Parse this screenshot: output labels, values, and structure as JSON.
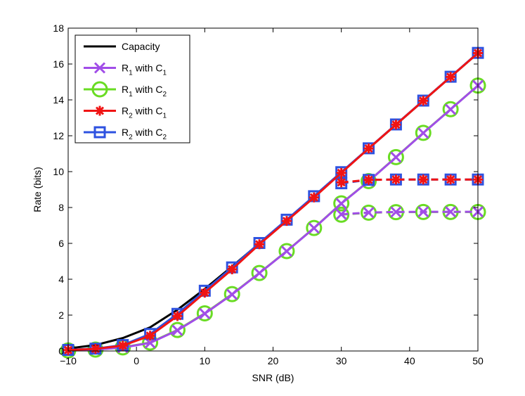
{
  "chart_data": {
    "type": "line",
    "title": "",
    "xlabel": "SNR (dB)",
    "ylabel": "Rate (bits)",
    "xlim": [
      -10,
      50
    ],
    "ylim": [
      0,
      18
    ],
    "xticks": [
      -10,
      0,
      10,
      20,
      30,
      40,
      50
    ],
    "yticks": [
      0,
      2,
      4,
      6,
      8,
      10,
      12,
      14,
      16,
      18
    ],
    "xtick_labels": [
      "−10",
      "0",
      "10",
      "20",
      "30",
      "40",
      "50"
    ],
    "ytick_labels": [
      "0",
      "2",
      "4",
      "6",
      "8",
      "10",
      "12",
      "14",
      "16",
      "18"
    ],
    "grid": false,
    "legend_position": "top-left",
    "series": [
      {
        "key": "capacity",
        "name": "Capacity",
        "legend_main": "Capacity",
        "color": "#000000",
        "marker": "none",
        "x": [
          -10,
          -6,
          -2,
          2,
          6,
          10,
          14,
          18,
          22,
          26,
          30,
          34,
          38,
          42,
          46,
          50
        ],
        "values": [
          0.14,
          0.33,
          0.72,
          1.32,
          2.3,
          3.46,
          4.71,
          6.0,
          7.3,
          8.62,
          9.96,
          11.29,
          12.62,
          13.95,
          15.28,
          16.61
        ]
      },
      {
        "key": "r1c1",
        "name": "R1 with C1",
        "legend_main": "R",
        "legend_sub1": "1",
        "legend_mid": " with C",
        "legend_sub2": "1",
        "color": "#a14de8",
        "marker": "x",
        "x": [
          -10,
          -6,
          -2,
          2,
          6,
          10,
          14,
          18,
          22,
          26,
          30,
          34,
          38,
          42,
          46,
          50
        ],
        "values": [
          0.03,
          0.08,
          0.19,
          0.45,
          1.15,
          2.08,
          3.15,
          4.34,
          5.56,
          6.85,
          8.22,
          9.46,
          10.8,
          12.15,
          13.47,
          14.8
        ],
        "dashed_x": [
          30,
          34,
          38,
          42,
          46,
          50
        ],
        "dashed_values": [
          7.62,
          7.72,
          7.75,
          7.76,
          7.76,
          7.76
        ]
      },
      {
        "key": "r1c2",
        "name": "R1 with C2",
        "legend_main": "R",
        "legend_sub1": "1",
        "legend_mid": " with C",
        "legend_sub2": "2",
        "color": "#69dc23",
        "marker": "circle",
        "x": [
          -10,
          -6,
          -2,
          2,
          6,
          10,
          14,
          18,
          22,
          26,
          30,
          34,
          38,
          42,
          46,
          50
        ],
        "values": [
          0.03,
          0.08,
          0.2,
          0.47,
          1.17,
          2.1,
          3.17,
          4.35,
          5.57,
          6.86,
          8.23,
          9.47,
          10.81,
          12.16,
          13.48,
          14.8
        ],
        "dashed_x": [
          30,
          34,
          38,
          42,
          46,
          50
        ],
        "dashed_values": [
          7.6,
          7.71,
          7.74,
          7.75,
          7.75,
          7.75
        ]
      },
      {
        "key": "r2c1",
        "name": "R2 with C1",
        "legend_main": "R",
        "legend_sub1": "2",
        "legend_mid": " with C",
        "legend_sub2": "1",
        "color": "#f01414",
        "marker": "asterisk",
        "x": [
          -10,
          -6,
          -2,
          2,
          6,
          10,
          14,
          18,
          22,
          26,
          30,
          34,
          38,
          42,
          46,
          50
        ],
        "values": [
          0.05,
          0.12,
          0.3,
          0.85,
          1.95,
          3.25,
          4.55,
          5.95,
          7.25,
          8.56,
          9.93,
          11.29,
          12.62,
          13.95,
          15.28,
          16.61
        ],
        "dashed_x": [
          30,
          34,
          38,
          42,
          46,
          50
        ],
        "dashed_values": [
          9.4,
          9.54,
          9.56,
          9.56,
          9.56,
          9.56
        ]
      },
      {
        "key": "r2c2",
        "name": "R2 with C2",
        "legend_main": "R",
        "legend_sub1": "2",
        "legend_mid": " with C",
        "legend_sub2": "2",
        "color": "#2e52e0",
        "marker": "square",
        "x": [
          -10,
          -6,
          -2,
          2,
          6,
          10,
          14,
          18,
          22,
          26,
          30,
          34,
          38,
          42,
          46,
          50
        ],
        "values": [
          0.06,
          0.13,
          0.33,
          0.95,
          2.07,
          3.36,
          4.66,
          6.02,
          7.32,
          8.63,
          9.97,
          11.3,
          12.63,
          13.96,
          15.29,
          16.62
        ],
        "dashed_x": [
          30,
          34,
          38,
          42,
          46,
          50
        ],
        "dashed_values": [
          9.35,
          9.54,
          9.56,
          9.56,
          9.56,
          9.56
        ]
      }
    ]
  }
}
